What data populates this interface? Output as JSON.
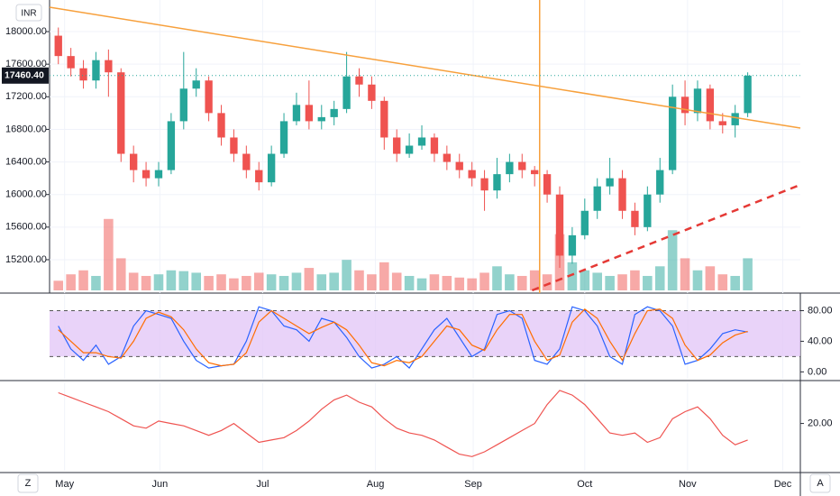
{
  "chart_data": [
    {
      "type": "candlestick",
      "currency": "INR",
      "grid": true,
      "xlim": [
        -0.7,
        59.2
      ],
      "xticks": [
        {
          "value": 0.5,
          "label": "May"
        },
        {
          "value": 8.1,
          "label": "Jun"
        },
        {
          "value": 16.3,
          "label": "Jul"
        },
        {
          "value": 25.3,
          "label": "Aug"
        },
        {
          "value": 33.1,
          "label": "Sep"
        },
        {
          "value": 42.0,
          "label": "Oct"
        },
        {
          "value": 50.2,
          "label": "Nov"
        },
        {
          "value": 57.8,
          "label": "Dec"
        }
      ],
      "ylim": [
        14790,
        18388
      ],
      "yticks": [
        {
          "value": 15200,
          "label": "15200.00"
        },
        {
          "value": 15600,
          "label": "15600.00"
        },
        {
          "value": 16000,
          "label": "16000.00"
        },
        {
          "value": 16400,
          "label": "16400.00"
        },
        {
          "value": 16800,
          "label": "16800.00"
        },
        {
          "value": 17200,
          "label": "17200.00"
        },
        {
          "value": 17600,
          "label": "17600.00"
        },
        {
          "value": 18000,
          "label": "18000.00"
        }
      ],
      "up_color": "#26a69a",
      "down_color": "#ef5350",
      "open": [
        17950,
        17700,
        17550,
        17400,
        17650,
        17500,
        16500,
        16300,
        16200,
        16300,
        16900,
        17300,
        17400,
        17000,
        16700,
        16500,
        16300,
        16150,
        16500,
        16900,
        17100,
        16900,
        16950,
        17050,
        17450,
        17350,
        17150,
        16700,
        16500,
        16600,
        16700,
        16500,
        16400,
        16300,
        16200,
        16050,
        16250,
        16400,
        16300,
        16250,
        16000,
        15250,
        15500,
        15800,
        16100,
        16200,
        15800,
        15600,
        16000,
        16300,
        17200,
        17000,
        17300,
        16900,
        16850,
        17000
      ],
      "high": [
        18050,
        17800,
        17650,
        17750,
        17780,
        17550,
        16600,
        16400,
        16400,
        17000,
        17750,
        17550,
        17450,
        17100,
        16800,
        16600,
        16400,
        16600,
        17000,
        17250,
        17400,
        17100,
        17150,
        17750,
        17550,
        17450,
        17200,
        16800,
        16750,
        16850,
        16750,
        16600,
        16500,
        16400,
        16300,
        16450,
        16500,
        16500,
        16350,
        16300,
        16100,
        15600,
        15950,
        16200,
        16450,
        16300,
        15900,
        16100,
        16450,
        17350,
        17400,
        17400,
        17350,
        17000,
        17100,
        17500
      ],
      "low": [
        17600,
        17450,
        17300,
        17300,
        17200,
        16400,
        16150,
        16100,
        16100,
        16250,
        16800,
        17200,
        16900,
        16600,
        16400,
        16200,
        16050,
        16100,
        16450,
        16850,
        16800,
        16800,
        16850,
        17000,
        17200,
        17050,
        16550,
        16400,
        16450,
        16550,
        16400,
        16300,
        16200,
        16100,
        15800,
        15950,
        16150,
        16200,
        16100,
        15900,
        15100,
        15150,
        15450,
        15700,
        16000,
        15700,
        15500,
        15550,
        15900,
        16250,
        16850,
        16900,
        16800,
        16750,
        16700,
        16950
      ],
      "close": [
        17700,
        17550,
        17400,
        17650,
        17500,
        16500,
        16300,
        16200,
        16300,
        16900,
        17300,
        17400,
        17000,
        16700,
        16500,
        16300,
        16150,
        16500,
        16900,
        17100,
        16900,
        16950,
        17050,
        17450,
        17350,
        17150,
        16700,
        16500,
        16600,
        16700,
        16500,
        16400,
        16300,
        16200,
        16050,
        16250,
        16400,
        16300,
        16250,
        16000,
        15250,
        15500,
        15800,
        16100,
        16200,
        15800,
        15600,
        16000,
        16300,
        17200,
        17000,
        17300,
        16900,
        16850,
        17000,
        17460
      ],
      "volume": [
        12,
        20,
        25,
        18,
        89,
        40,
        22,
        18,
        20,
        25,
        24,
        22,
        18,
        20,
        15,
        18,
        22,
        20,
        18,
        22,
        28,
        20,
        22,
        38,
        25,
        20,
        35,
        22,
        18,
        15,
        20,
        18,
        16,
        15,
        22,
        30,
        20,
        18,
        25,
        20,
        70,
        35,
        25,
        22,
        18,
        20,
        25,
        18,
        30,
        75,
        40,
        25,
        30,
        20,
        18,
        40
      ],
      "volume_lim": [
        0,
        100
      ],
      "last_price": {
        "value": 17460.4,
        "label": "17460.40"
      },
      "trendlines": [
        {
          "color": "#f7a03c",
          "dashed": false,
          "x": [
            -0.7,
            59.2
          ],
          "y": [
            18299,
            16816
          ]
        },
        {
          "color": "#e53935",
          "dashed": true,
          "x": [
            37.8,
            59.2
          ],
          "y": [
            14823,
            16119
          ]
        }
      ],
      "vline": {
        "x": 38.4,
        "color": "#f7a03c"
      }
    },
    {
      "type": "line",
      "band": [
        20,
        80
      ],
      "band_color": "#e4c8f7",
      "ylim": [
        -9,
        100.6
      ],
      "yticks": [
        {
          "value": 0,
          "label": "0.00"
        },
        {
          "value": 40,
          "label": "40.00"
        },
        {
          "value": 80,
          "label": "80.00"
        }
      ],
      "series": [
        {
          "color": "#2962ff",
          "values": [
            60,
            30,
            15,
            35,
            10,
            20,
            60,
            80,
            75,
            70,
            40,
            15,
            5,
            8,
            10,
            40,
            85,
            80,
            60,
            55,
            40,
            70,
            65,
            45,
            20,
            5,
            10,
            20,
            5,
            30,
            55,
            70,
            45,
            20,
            30,
            75,
            80,
            70,
            15,
            10,
            30,
            85,
            80,
            60,
            20,
            10,
            75,
            85,
            80,
            60,
            10,
            15,
            30,
            50,
            55,
            52
          ]
        },
        {
          "color": "#ff6d00",
          "values": [
            55,
            40,
            25,
            25,
            20,
            18,
            40,
            70,
            78,
            72,
            55,
            30,
            12,
            8,
            10,
            25,
            65,
            80,
            70,
            60,
            50,
            58,
            65,
            55,
            35,
            12,
            8,
            15,
            12,
            20,
            40,
            60,
            55,
            35,
            28,
            55,
            75,
            75,
            40,
            15,
            22,
            65,
            82,
            70,
            40,
            15,
            50,
            80,
            82,
            70,
            35,
            15,
            22,
            38,
            48,
            53
          ]
        }
      ]
    },
    {
      "type": "line",
      "ylim": [
        0,
        37
      ],
      "yticks": [
        {
          "value": 20,
          "label": "20.00"
        }
      ],
      "series": [
        {
          "color": "#ef5350",
          "values": [
            33,
            31,
            29,
            27,
            25,
            22,
            19,
            18,
            21,
            20,
            19,
            17,
            15,
            17,
            20,
            16,
            12,
            13,
            14,
            17,
            21,
            26,
            30,
            32,
            29,
            27,
            22,
            18,
            16,
            15,
            13,
            10,
            7,
            6,
            8,
            11,
            14,
            17,
            20,
            28,
            34,
            32,
            28,
            22,
            16,
            15,
            16,
            12,
            14,
            22,
            25,
            27,
            22,
            15,
            11,
            13
          ]
        }
      ]
    }
  ]
}
